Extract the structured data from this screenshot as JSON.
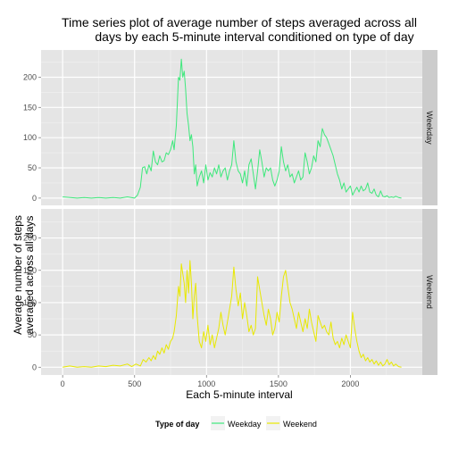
{
  "chart_data": {
    "type": "line",
    "title_lines": [
      "Time series plot of average number of steps averaged across all",
      "days by each 5-minute interval conditioned on type of day"
    ],
    "xlabel": "Each 5-minute interval",
    "ylabel_lines": [
      "Average number of steps",
      "averaged across all days"
    ],
    "xlim": [
      -150,
      2500
    ],
    "ylim": [
      -12,
      245
    ],
    "x_ticks": [
      0,
      500,
      1000,
      1500,
      2000
    ],
    "y_ticks": [
      0,
      50,
      100,
      150,
      200
    ],
    "grid": true,
    "legend": {
      "title": "Type of day",
      "position": "bottom"
    },
    "series": [
      {
        "name": "Weekday",
        "color": "#3ee87c",
        "points": [
          [
            0,
            2
          ],
          [
            55,
            1
          ],
          [
            100,
            0
          ],
          [
            150,
            1
          ],
          [
            200,
            0
          ],
          [
            250,
            1
          ],
          [
            300,
            0
          ],
          [
            350,
            1
          ],
          [
            400,
            0
          ],
          [
            450,
            2
          ],
          [
            500,
            0
          ],
          [
            520,
            5
          ],
          [
            540,
            18
          ],
          [
            555,
            50
          ],
          [
            570,
            52
          ],
          [
            585,
            40
          ],
          [
            600,
            55
          ],
          [
            615,
            45
          ],
          [
            630,
            78
          ],
          [
            645,
            60
          ],
          [
            660,
            55
          ],
          [
            675,
            70
          ],
          [
            690,
            60
          ],
          [
            705,
            62
          ],
          [
            720,
            75
          ],
          [
            735,
            72
          ],
          [
            750,
            80
          ],
          [
            765,
            95
          ],
          [
            775,
            80
          ],
          [
            790,
            120
          ],
          [
            805,
            200
          ],
          [
            815,
            195
          ],
          [
            825,
            230
          ],
          [
            835,
            200
          ],
          [
            845,
            210
          ],
          [
            855,
            180
          ],
          [
            865,
            140
          ],
          [
            875,
            120
          ],
          [
            885,
            95
          ],
          [
            895,
            105
          ],
          [
            905,
            85
          ],
          [
            915,
            40
          ],
          [
            925,
            55
          ],
          [
            935,
            20
          ],
          [
            950,
            35
          ],
          [
            965,
            45
          ],
          [
            980,
            25
          ],
          [
            995,
            55
          ],
          [
            1010,
            30
          ],
          [
            1025,
            42
          ],
          [
            1040,
            35
          ],
          [
            1055,
            50
          ],
          [
            1070,
            40
          ],
          [
            1085,
            55
          ],
          [
            1100,
            35
          ],
          [
            1115,
            45
          ],
          [
            1130,
            50
          ],
          [
            1145,
            30
          ],
          [
            1160,
            45
          ],
          [
            1175,
            55
          ],
          [
            1190,
            95
          ],
          [
            1205,
            60
          ],
          [
            1220,
            45
          ],
          [
            1235,
            40
          ],
          [
            1250,
            25
          ],
          [
            1265,
            45
          ],
          [
            1280,
            20
          ],
          [
            1295,
            55
          ],
          [
            1310,
            65
          ],
          [
            1325,
            40
          ],
          [
            1340,
            15
          ],
          [
            1355,
            45
          ],
          [
            1370,
            80
          ],
          [
            1385,
            60
          ],
          [
            1400,
            35
          ],
          [
            1415,
            50
          ],
          [
            1430,
            45
          ],
          [
            1445,
            50
          ],
          [
            1460,
            30
          ],
          [
            1475,
            20
          ],
          [
            1490,
            30
          ],
          [
            1505,
            45
          ],
          [
            1520,
            85
          ],
          [
            1535,
            60
          ],
          [
            1550,
            45
          ],
          [
            1565,
            55
          ],
          [
            1580,
            35
          ],
          [
            1595,
            40
          ],
          [
            1610,
            25
          ],
          [
            1625,
            35
          ],
          [
            1640,
            45
          ],
          [
            1655,
            30
          ],
          [
            1670,
            35
          ],
          [
            1685,
            75
          ],
          [
            1700,
            60
          ],
          [
            1715,
            40
          ],
          [
            1730,
            50
          ],
          [
            1745,
            70
          ],
          [
            1760,
            60
          ],
          [
            1775,
            95
          ],
          [
            1790,
            85
          ],
          [
            1805,
            115
          ],
          [
            1820,
            105
          ],
          [
            1835,
            100
          ],
          [
            1850,
            90
          ],
          [
            1865,
            80
          ],
          [
            1880,
            70
          ],
          [
            1895,
            55
          ],
          [
            1910,
            40
          ],
          [
            1925,
            30
          ],
          [
            1940,
            15
          ],
          [
            1955,
            25
          ],
          [
            1970,
            10
          ],
          [
            1985,
            15
          ],
          [
            2000,
            20
          ],
          [
            2015,
            5
          ],
          [
            2030,
            12
          ],
          [
            2045,
            18
          ],
          [
            2060,
            10
          ],
          [
            2075,
            20
          ],
          [
            2090,
            12
          ],
          [
            2105,
            15
          ],
          [
            2120,
            25
          ],
          [
            2135,
            10
          ],
          [
            2150,
            8
          ],
          [
            2165,
            15
          ],
          [
            2180,
            5
          ],
          [
            2195,
            2
          ],
          [
            2210,
            12
          ],
          [
            2225,
            3
          ],
          [
            2240,
            2
          ],
          [
            2255,
            4
          ],
          [
            2270,
            1
          ],
          [
            2285,
            2
          ],
          [
            2300,
            1
          ],
          [
            2315,
            3
          ],
          [
            2335,
            1
          ],
          [
            2355,
            0
          ]
        ]
      },
      {
        "name": "Weekend",
        "color": "#e8e800",
        "points": [
          [
            0,
            0
          ],
          [
            50,
            2
          ],
          [
            100,
            0
          ],
          [
            150,
            1
          ],
          [
            200,
            0
          ],
          [
            250,
            2
          ],
          [
            300,
            1
          ],
          [
            350,
            3
          ],
          [
            400,
            2
          ],
          [
            450,
            5
          ],
          [
            480,
            1
          ],
          [
            510,
            5
          ],
          [
            540,
            2
          ],
          [
            560,
            12
          ],
          [
            580,
            8
          ],
          [
            600,
            15
          ],
          [
            615,
            10
          ],
          [
            630,
            18
          ],
          [
            645,
            12
          ],
          [
            660,
            25
          ],
          [
            675,
            20
          ],
          [
            690,
            30
          ],
          [
            705,
            22
          ],
          [
            720,
            35
          ],
          [
            735,
            28
          ],
          [
            750,
            40
          ],
          [
            765,
            45
          ],
          [
            775,
            55
          ],
          [
            790,
            80
          ],
          [
            805,
            125
          ],
          [
            815,
            110
          ],
          [
            825,
            160
          ],
          [
            835,
            145
          ],
          [
            845,
            130
          ],
          [
            855,
            100
          ],
          [
            865,
            150
          ],
          [
            875,
            115
          ],
          [
            885,
            165
          ],
          [
            895,
            130
          ],
          [
            905,
            75
          ],
          [
            915,
            110
          ],
          [
            925,
            130
          ],
          [
            935,
            80
          ],
          [
            950,
            40
          ],
          [
            965,
            30
          ],
          [
            980,
            55
          ],
          [
            995,
            40
          ],
          [
            1010,
            65
          ],
          [
            1025,
            35
          ],
          [
            1040,
            50
          ],
          [
            1055,
            30
          ],
          [
            1070,
            45
          ],
          [
            1085,
            60
          ],
          [
            1100,
            85
          ],
          [
            1115,
            65
          ],
          [
            1130,
            50
          ],
          [
            1145,
            70
          ],
          [
            1160,
            90
          ],
          [
            1175,
            110
          ],
          [
            1190,
            155
          ],
          [
            1205,
            120
          ],
          [
            1220,
            95
          ],
          [
            1235,
            115
          ],
          [
            1250,
            75
          ],
          [
            1265,
            100
          ],
          [
            1280,
            80
          ],
          [
            1295,
            55
          ],
          [
            1310,
            65
          ],
          [
            1325,
            50
          ],
          [
            1340,
            60
          ],
          [
            1355,
            140
          ],
          [
            1370,
            120
          ],
          [
            1385,
            100
          ],
          [
            1400,
            80
          ],
          [
            1415,
            65
          ],
          [
            1430,
            90
          ],
          [
            1445,
            75
          ],
          [
            1460,
            50
          ],
          [
            1475,
            60
          ],
          [
            1490,
            85
          ],
          [
            1505,
            70
          ],
          [
            1520,
            110
          ],
          [
            1535,
            140
          ],
          [
            1550,
            150
          ],
          [
            1565,
            125
          ],
          [
            1580,
            100
          ],
          [
            1595,
            90
          ],
          [
            1610,
            75
          ],
          [
            1625,
            60
          ],
          [
            1640,
            85
          ],
          [
            1655,
            70
          ],
          [
            1670,
            55
          ],
          [
            1685,
            75
          ],
          [
            1700,
            60
          ],
          [
            1715,
            90
          ],
          [
            1730,
            70
          ],
          [
            1745,
            55
          ],
          [
            1760,
            40
          ],
          [
            1775,
            80
          ],
          [
            1790,
            70
          ],
          [
            1805,
            60
          ],
          [
            1820,
            65
          ],
          [
            1835,
            55
          ],
          [
            1850,
            50
          ],
          [
            1865,
            70
          ],
          [
            1880,
            45
          ],
          [
            1895,
            35
          ],
          [
            1910,
            40
          ],
          [
            1925,
            30
          ],
          [
            1940,
            45
          ],
          [
            1955,
            35
          ],
          [
            1970,
            50
          ],
          [
            1985,
            40
          ],
          [
            2000,
            30
          ],
          [
            2015,
            85
          ],
          [
            2030,
            60
          ],
          [
            2045,
            40
          ],
          [
            2060,
            25
          ],
          [
            2075,
            15
          ],
          [
            2090,
            20
          ],
          [
            2105,
            10
          ],
          [
            2120,
            15
          ],
          [
            2135,
            8
          ],
          [
            2150,
            12
          ],
          [
            2165,
            5
          ],
          [
            2180,
            10
          ],
          [
            2195,
            3
          ],
          [
            2210,
            8
          ],
          [
            2225,
            2
          ],
          [
            2240,
            5
          ],
          [
            2255,
            12
          ],
          [
            2270,
            4
          ],
          [
            2285,
            8
          ],
          [
            2300,
            2
          ],
          [
            2315,
            5
          ],
          [
            2335,
            1
          ],
          [
            2355,
            0
          ]
        ]
      }
    ]
  }
}
